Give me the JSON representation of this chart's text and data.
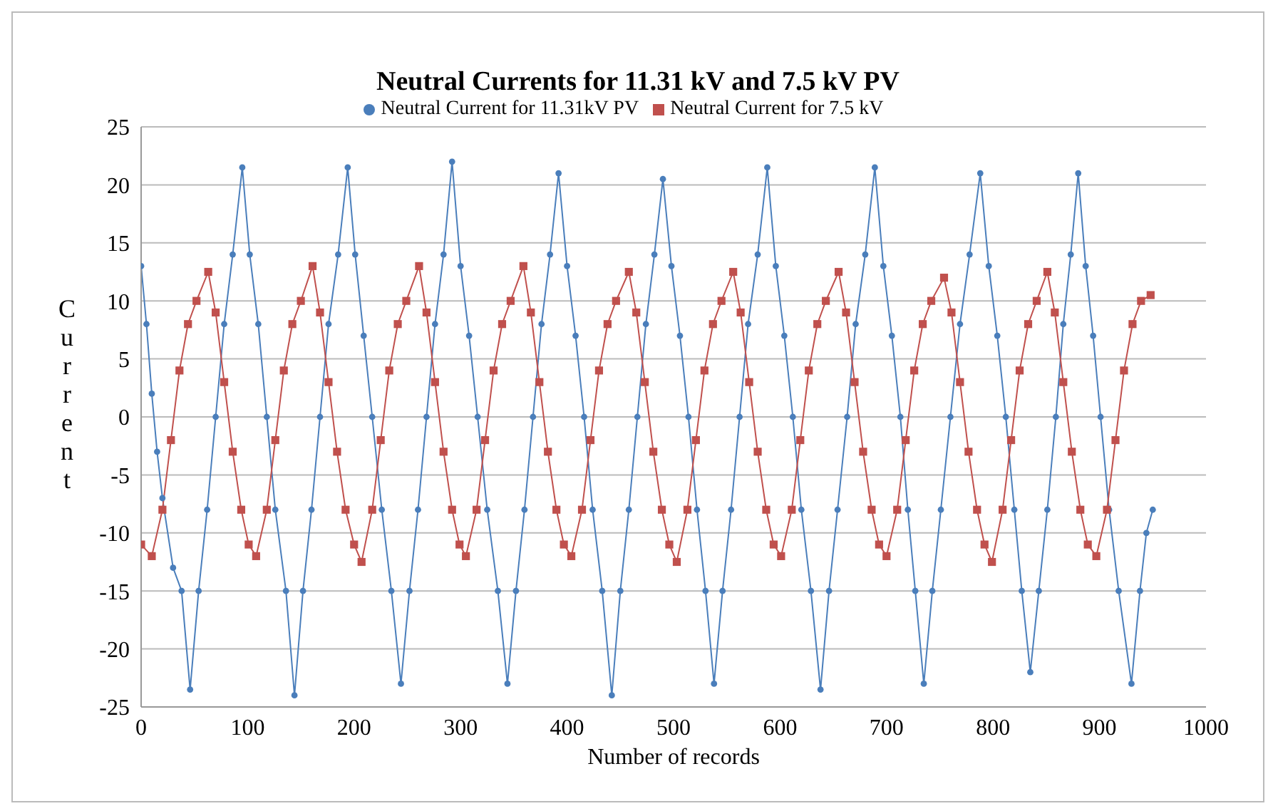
{
  "chart_data": {
    "type": "line",
    "title": "Neutral Currents for 11.31 kV and 7.5 kV PV",
    "xlabel": "Number of records",
    "ylabel": "Current",
    "xlim": [
      0,
      1000
    ],
    "xticks": [
      0,
      100,
      200,
      300,
      400,
      500,
      600,
      700,
      800,
      900,
      1000
    ],
    "ylim": [
      -25,
      25
    ],
    "yticks": [
      -25,
      -20,
      -15,
      -10,
      -5,
      0,
      5,
      10,
      15,
      20,
      25
    ],
    "grid": "y",
    "legend": "top",
    "series": [
      {
        "name": "Neutral Current for 11.31kV PV",
        "color": "#4a7ebb",
        "marker": "circle",
        "x": [
          0,
          5,
          10,
          15,
          20,
          30,
          38,
          46,
          54,
          62,
          70,
          78,
          86,
          95,
          102,
          110,
          118,
          126,
          136,
          144,
          152,
          160,
          168,
          176,
          185,
          194,
          201,
          209,
          217,
          226,
          235,
          244,
          252,
          260,
          268,
          276,
          284,
          292,
          300,
          308,
          316,
          325,
          335,
          344,
          352,
          360,
          368,
          376,
          384,
          392,
          400,
          408,
          416,
          424,
          433,
          442,
          450,
          458,
          466,
          474,
          482,
          490,
          498,
          506,
          514,
          522,
          530,
          538,
          546,
          554,
          562,
          570,
          579,
          588,
          596,
          604,
          612,
          620,
          629,
          638,
          646,
          654,
          663,
          671,
          680,
          689,
          697,
          705,
          713,
          720,
          727,
          735,
          743,
          751,
          760,
          769,
          778,
          788,
          796,
          804,
          812,
          820,
          827,
          835,
          843,
          851,
          859,
          866,
          873,
          880,
          887,
          894,
          901,
          909,
          918,
          930,
          938,
          944,
          950
        ],
        "values": [
          13,
          8,
          2,
          -3,
          -7,
          -13,
          -15,
          -23.5,
          -15,
          -8,
          0,
          8,
          14,
          21.5,
          14,
          8,
          0,
          -8,
          -15,
          -24,
          -15,
          -8,
          0,
          8,
          14,
          21.5,
          14,
          7,
          0,
          -8,
          -15,
          -23,
          -15,
          -8,
          0,
          8,
          14,
          22,
          13,
          7,
          0,
          -8,
          -15,
          -23,
          -15,
          -8,
          0,
          8,
          14,
          21,
          13,
          7,
          0,
          -8,
          -15,
          -24,
          -15,
          -8,
          0,
          8,
          14,
          20.5,
          13,
          7,
          0,
          -8,
          -15,
          -23,
          -15,
          -8,
          0,
          8,
          14,
          21.5,
          13,
          7,
          0,
          -8,
          -15,
          -23.5,
          -15,
          -8,
          0,
          8,
          14,
          21.5,
          13,
          7,
          0,
          -8,
          -15,
          -23,
          -15,
          -8,
          0,
          8,
          14,
          21,
          13,
          7,
          0,
          -8,
          -15,
          -22,
          -15,
          -8,
          0,
          8,
          14,
          21,
          13,
          7,
          0,
          -8,
          -15,
          -23,
          -15,
          -10,
          -8
        ]
      },
      {
        "name": "Neutral Current for 7.5 kV",
        "color": "#c0504d",
        "marker": "square",
        "x": [
          0,
          10,
          20,
          28,
          36,
          44,
          52,
          63,
          70,
          78,
          86,
          94,
          101,
          108,
          118,
          126,
          134,
          142,
          150,
          161,
          168,
          176,
          184,
          192,
          200,
          207,
          217,
          225,
          233,
          241,
          249,
          261,
          268,
          276,
          284,
          292,
          299,
          305,
          315,
          323,
          331,
          339,
          347,
          359,
          366,
          374,
          382,
          390,
          397,
          404,
          414,
          422,
          430,
          438,
          446,
          458,
          465,
          473,
          481,
          489,
          496,
          503,
          513,
          521,
          529,
          537,
          545,
          556,
          563,
          571,
          579,
          587,
          594,
          601,
          611,
          619,
          627,
          635,
          643,
          655,
          662,
          670,
          678,
          686,
          693,
          700,
          710,
          718,
          726,
          734,
          742,
          754,
          761,
          769,
          777,
          785,
          792,
          799,
          809,
          817,
          825,
          833,
          841,
          851,
          858,
          866,
          874,
          882,
          889,
          897,
          907,
          915,
          923,
          931,
          939,
          948
        ],
        "values": [
          -11,
          -12,
          -8,
          -2,
          4,
          8,
          10,
          12.5,
          9,
          3,
          -3,
          -8,
          -11,
          -12,
          -8,
          -2,
          4,
          8,
          10,
          13,
          9,
          3,
          -3,
          -8,
          -11,
          -12.5,
          -8,
          -2,
          4,
          8,
          10,
          13,
          9,
          3,
          -3,
          -8,
          -11,
          -12,
          -8,
          -2,
          4,
          8,
          10,
          13,
          9,
          3,
          -3,
          -8,
          -11,
          -12,
          -8,
          -2,
          4,
          8,
          10,
          12.5,
          9,
          3,
          -3,
          -8,
          -11,
          -12.5,
          -8,
          -2,
          4,
          8,
          10,
          12.5,
          9,
          3,
          -3,
          -8,
          -11,
          -12,
          -8,
          -2,
          4,
          8,
          10,
          12.5,
          9,
          3,
          -3,
          -8,
          -11,
          -12,
          -8,
          -2,
          4,
          8,
          10,
          12,
          9,
          3,
          -3,
          -8,
          -11,
          -12.5,
          -8,
          -2,
          4,
          8,
          10,
          12.5,
          9,
          3,
          -3,
          -8,
          -11,
          -12,
          -8,
          -2,
          4,
          8,
          10,
          10.5
        ]
      }
    ]
  }
}
